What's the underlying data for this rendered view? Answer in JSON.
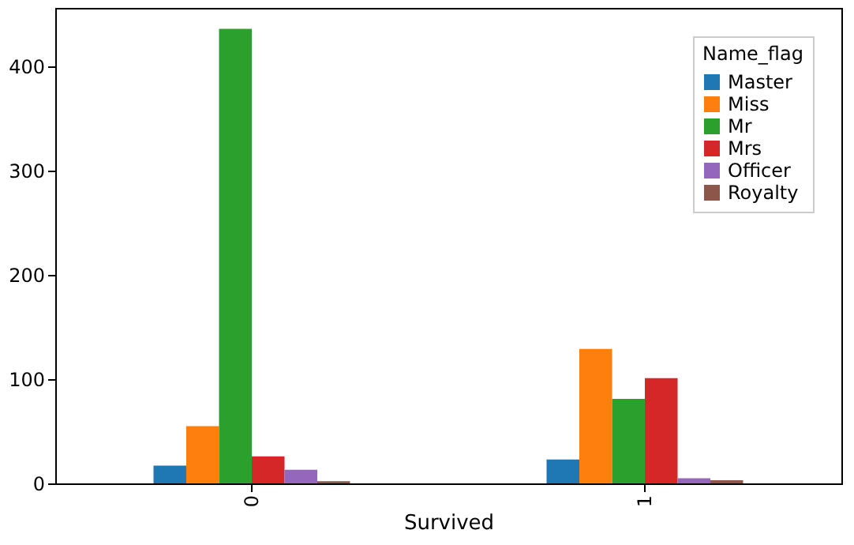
{
  "chart_data": {
    "type": "bar",
    "xlabel": "Survived",
    "legend_title": "Name_flag",
    "categories": [
      "0",
      "1"
    ],
    "series": [
      {
        "name": "Master",
        "color": "#1f77b4",
        "values": [
          17,
          23
        ]
      },
      {
        "name": "Miss",
        "color": "#ff7f0e",
        "values": [
          55,
          129
        ]
      },
      {
        "name": "Mr",
        "color": "#2ca02c",
        "values": [
          436,
          81
        ]
      },
      {
        "name": "Mrs",
        "color": "#d62728",
        "values": [
          26,
          101
        ]
      },
      {
        "name": "Officer",
        "color": "#9467bd",
        "values": [
          13,
          5
        ]
      },
      {
        "name": "Royalty",
        "color": "#8c564b",
        "values": [
          2,
          3
        ]
      }
    ],
    "ylim": [
      0,
      456
    ],
    "yticks": [
      0,
      100,
      200,
      300,
      400
    ],
    "grid": false,
    "legend": "top right"
  }
}
